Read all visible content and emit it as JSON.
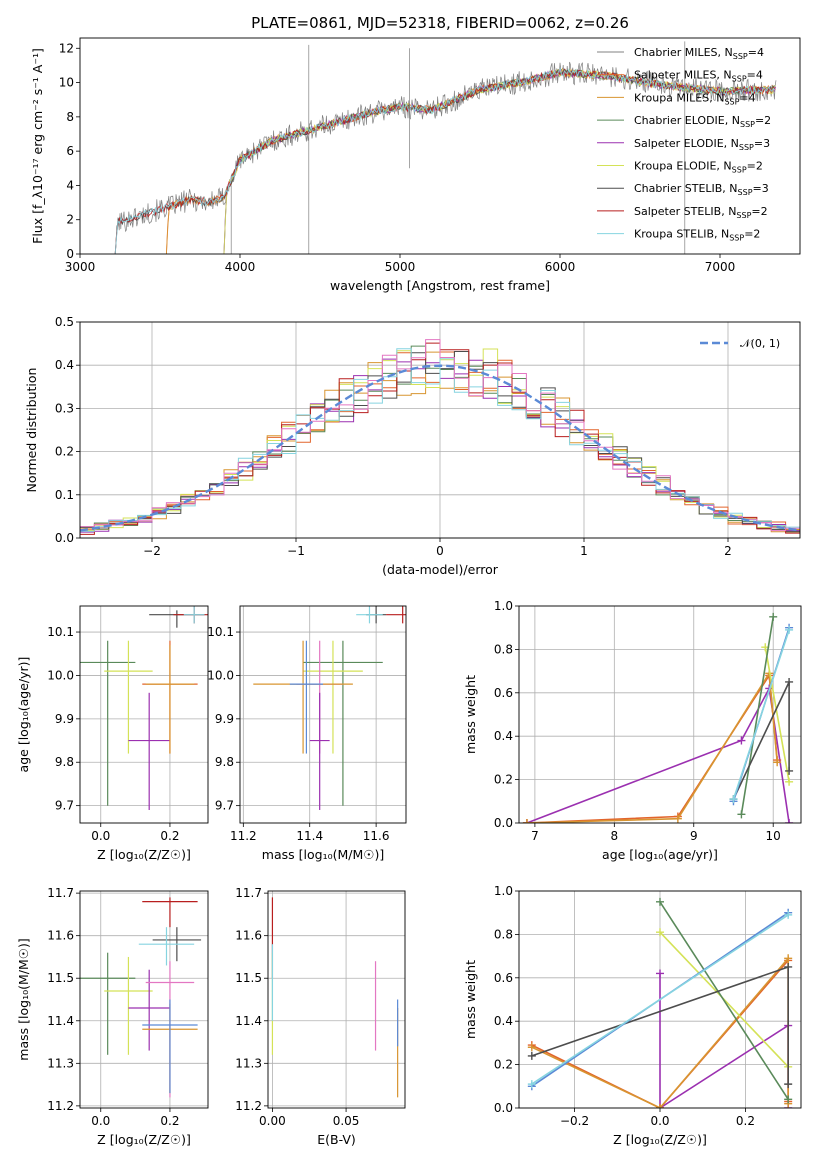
{
  "figure": {
    "title": "PLATE=0861, MJD=52318, FIBERID=0062, z=0.26"
  },
  "chart_data": [
    {
      "id": "spectrum",
      "type": "line",
      "xlabel": "wavelength [Angstrom, rest frame]",
      "ylabel": "Flux [f_λ10⁻¹⁷ erg cm⁻² s⁻¹ A⁻¹]",
      "xlim": [
        3000,
        7500
      ],
      "ylim": [
        0,
        12.6
      ],
      "xticks": [
        3000,
        4000,
        5000,
        6000,
        7000
      ],
      "yticks": [
        0,
        2,
        4,
        6,
        8,
        10,
        12
      ],
      "grid": false,
      "legend_position": "top-right",
      "series": [
        {
          "name": "Chabrier MILES, N_SSP=4",
          "color": "#808080",
          "start": 3220
        },
        {
          "name": "Salpeter MILES, N_SSP=4",
          "color": "#e2652c",
          "start": 3540
        },
        {
          "name": "Kroupa MILES, N_SSP=4",
          "color": "#d89531",
          "start": 3540
        },
        {
          "name": "Chabrier ELODIE, N_SSP=2",
          "color": "#5a8a5a",
          "start": 3900
        },
        {
          "name": "Salpeter ELODIE, N_SSP=3",
          "color": "#9b30b0",
          "start": 3900
        },
        {
          "name": "Kroupa ELODIE, N_SSP=2",
          "color": "#d4e257",
          "start": 3900
        },
        {
          "name": "Chabrier STELIB, N_SSP=3",
          "color": "#4d4d4d",
          "start": 3220
        },
        {
          "name": "Salpeter STELIB, N_SSP=2",
          "color": "#b81f1f",
          "start": 3220
        },
        {
          "name": "Kroupa STELIB, N_SSP=2",
          "color": "#86d4e0",
          "start": 3220
        }
      ],
      "continuum": {
        "x": [
          3220,
          3300,
          3400,
          3500,
          3600,
          3700,
          3800,
          3900,
          4000,
          4200,
          4500,
          4800,
          5000,
          5200,
          5500,
          5800,
          6000,
          6300,
          6600,
          7000,
          7350
        ],
        "y": [
          1.8,
          2.0,
          2.3,
          2.6,
          2.9,
          3.2,
          3.0,
          3.3,
          5.5,
          6.6,
          7.4,
          8.2,
          8.6,
          8.4,
          9.6,
          10.1,
          10.6,
          10.4,
          9.9,
          9.5,
          9.6
        ]
      }
    },
    {
      "id": "residuals",
      "type": "step",
      "xlabel": "(data-model)/error",
      "ylabel": "Normed distribution",
      "xlim": [
        -2.5,
        2.5
      ],
      "ylim": [
        0,
        0.5
      ],
      "xticks": [
        -2,
        -1,
        0,
        1,
        2
      ],
      "yticks": [
        0.0,
        0.1,
        0.2,
        0.3,
        0.4,
        0.5
      ],
      "grid": true,
      "legend": "𝒩(0, 1)",
      "legend_position": "top-right",
      "gaussian_color": "#5b8ad6",
      "bin_width": 0.1,
      "series": [
        {
          "color": "#e2652c",
          "seed": 3
        },
        {
          "color": "#d89531",
          "seed": 5
        },
        {
          "color": "#5a8a5a",
          "seed": 7
        },
        {
          "color": "#9b30b0",
          "seed": 11
        },
        {
          "color": "#d4e257",
          "seed": 13
        },
        {
          "color": "#4d4d4d",
          "seed": 17
        },
        {
          "color": "#b81f1f",
          "seed": 19
        },
        {
          "color": "#86d4e0",
          "seed": 23
        },
        {
          "color": "#e377c2",
          "seed": 29
        }
      ]
    },
    {
      "id": "age-vs-Z",
      "type": "errorbar",
      "xlabel": "Z [log₁₀(Z/Z☉)]",
      "ylabel": "age  [log₁₀(age/yr)]",
      "xlim": [
        -0.06,
        0.31
      ],
      "ylim": [
        9.66,
        10.16
      ],
      "xticks": [
        0.0,
        0.2
      ],
      "yticks": [
        9.7,
        9.8,
        9.9,
        10.0,
        10.1
      ],
      "grid": true,
      "points": [
        {
          "x": 0.02,
          "y": 10.03,
          "xerr": 0.08,
          "yerr": [
            0.33,
            0.05
          ],
          "color": "#5a8a5a"
        },
        {
          "x": 0.08,
          "y": 10.01,
          "xerr": 0.07,
          "yerr": [
            0.19,
            0.07
          ],
          "color": "#d4e257"
        },
        {
          "x": 0.14,
          "y": 9.85,
          "xerr": 0.06,
          "yerr": [
            0.16,
            0.11
          ],
          "color": "#9b30b0"
        },
        {
          "x": 0.2,
          "y": 9.98,
          "xerr": 0.08,
          "yerr": [
            0.16,
            0.1
          ],
          "color": "#e2652c"
        },
        {
          "x": 0.2,
          "y": 9.98,
          "xerr": 0.07,
          "yerr": [
            0.16,
            0.09
          ],
          "color": "#d89531"
        },
        {
          "x": 0.22,
          "y": 10.14,
          "xerr": 0.08,
          "yerr": [
            0.03,
            0.01
          ],
          "color": "#4d4d4d"
        },
        {
          "x": 0.27,
          "y": 10.14,
          "xerr": 0.06,
          "yerr": [
            0.02,
            0.02
          ],
          "color": "#b81f1f"
        },
        {
          "x": 0.27,
          "y": 10.14,
          "xerr": 0.03,
          "yerr": [
            0.02,
            0.02
          ],
          "color": "#86d4e0"
        }
      ]
    },
    {
      "id": "age-vs-mass",
      "type": "errorbar",
      "xlabel": "mass [log₁₀(M/M☉)]",
      "ylabel": "",
      "xlim": [
        11.19,
        11.69
      ],
      "ylim": [
        9.66,
        10.16
      ],
      "xticks": [
        11.2,
        11.4,
        11.6
      ],
      "yticks": [
        9.7,
        9.8,
        9.9,
        10.0,
        10.1
      ],
      "grid": true,
      "points": [
        {
          "x": 11.5,
          "y": 10.03,
          "xerr": 0.12,
          "yerr": [
            0.33,
            0.05
          ],
          "color": "#5a8a5a"
        },
        {
          "x": 11.47,
          "y": 10.01,
          "xerr": 0.09,
          "yerr": [
            0.19,
            0.07
          ],
          "color": "#d4e257"
        },
        {
          "x": 11.43,
          "y": 9.98,
          "xerr": 0.07,
          "yerr": [
            0.16,
            0.1
          ],
          "color": "#e377c2"
        },
        {
          "x": 11.38,
          "y": 9.98,
          "xerr": 0.15,
          "yerr": [
            0.16,
            0.1
          ],
          "color": "#d89531"
        },
        {
          "x": 11.39,
          "y": 9.98,
          "xerr": 0.05,
          "yerr": [
            0.16,
            0.1
          ],
          "color": "#5b8ad6"
        },
        {
          "x": 11.43,
          "y": 9.85,
          "xerr": 0.03,
          "yerr": [
            0.16,
            0.11
          ],
          "color": "#9b30b0"
        },
        {
          "x": 11.6,
          "y": 10.14,
          "xerr": 0.03,
          "yerr": [
            0.02,
            0.02
          ],
          "color": "#4d4d4d"
        },
        {
          "x": 11.68,
          "y": 10.14,
          "xerr": 0.05,
          "yerr": [
            0.02,
            0.02
          ],
          "color": "#b81f1f"
        },
        {
          "x": 11.58,
          "y": 10.14,
          "xerr": 0.04,
          "yerr": [
            0.02,
            0.02
          ],
          "color": "#86d4e0"
        }
      ]
    },
    {
      "id": "weight-vs-age",
      "type": "line",
      "xlabel": "age  [log₁₀(age/yr)]",
      "ylabel": "mass weight",
      "xlim": [
        6.8,
        10.35
      ],
      "ylim": [
        0,
        1
      ],
      "xticks": [
        7,
        8,
        9,
        10
      ],
      "yticks": [
        0.0,
        0.2,
        0.4,
        0.6,
        0.8,
        1.0
      ],
      "grid": true,
      "series": [
        {
          "color": "#9b30b0",
          "x": [
            6.9,
            9.6,
            9.95,
            10.2
          ],
          "y": [
            0.0,
            0.38,
            0.62,
            0.0
          ]
        },
        {
          "color": "#e2652c",
          "x": [
            6.9,
            8.8,
            9.95,
            10.05
          ],
          "y": [
            0.0,
            0.03,
            0.68,
            0.29
          ]
        },
        {
          "color": "#d89531",
          "x": [
            6.9,
            8.8,
            9.95,
            10.05
          ],
          "y": [
            0.0,
            0.02,
            0.69,
            0.28
          ]
        },
        {
          "color": "#d4e257",
          "x": [
            9.9,
            10.2
          ],
          "y": [
            0.81,
            0.19
          ]
        },
        {
          "color": "#5a8a5a",
          "x": [
            9.6,
            10.0
          ],
          "y": [
            0.04,
            0.95
          ]
        },
        {
          "color": "#4d4d4d",
          "x": [
            9.5,
            10.2,
            10.2
          ],
          "y": [
            0.11,
            0.65,
            0.24
          ]
        },
        {
          "color": "#5b8ad6",
          "x": [
            9.5,
            10.2
          ],
          "y": [
            0.1,
            0.9
          ]
        },
        {
          "color": "#86d4e0",
          "x": [
            9.5,
            10.2
          ],
          "y": [
            0.11,
            0.89
          ]
        }
      ]
    },
    {
      "id": "mass-vs-Z",
      "type": "errorbar",
      "xlabel": "Z [log₁₀(Z/Z☉)]",
      "ylabel": "mass [log₁₀(M/M☉)]",
      "xlim": [
        -0.06,
        0.31
      ],
      "ylim": [
        11.195,
        11.705
      ],
      "xticks": [
        0.0,
        0.2
      ],
      "yticks": [
        11.2,
        11.3,
        11.4,
        11.5,
        11.6,
        11.7
      ],
      "grid": true,
      "points": [
        {
          "x": 0.02,
          "y": 11.5,
          "xerr": 0.08,
          "yerr": [
            0.18,
            0.06
          ],
          "color": "#5a8a5a"
        },
        {
          "x": 0.08,
          "y": 11.47,
          "xerr": 0.07,
          "yerr": [
            0.15,
            0.08
          ],
          "color": "#d4e257"
        },
        {
          "x": 0.14,
          "y": 11.43,
          "xerr": 0.06,
          "yerr": [
            0.1,
            0.09
          ],
          "color": "#9b30b0"
        },
        {
          "x": 0.2,
          "y": 11.49,
          "xerr": 0.07,
          "yerr": [
            0.27,
            0.05
          ],
          "color": "#e377c2"
        },
        {
          "x": 0.2,
          "y": 11.38,
          "xerr": 0.08,
          "yerr": [
            0.15,
            0.06
          ],
          "color": "#d89531"
        },
        {
          "x": 0.2,
          "y": 11.39,
          "xerr": 0.08,
          "yerr": [
            0.16,
            0.06
          ],
          "color": "#5b8ad6"
        },
        {
          "x": 0.22,
          "y": 11.59,
          "xerr": 0.07,
          "yerr": [
            0.05,
            0.03
          ],
          "color": "#4d4d4d"
        },
        {
          "x": 0.19,
          "y": 11.58,
          "xerr": 0.08,
          "yerr": [
            0.05,
            0.04
          ],
          "color": "#86d4e0"
        },
        {
          "x": 0.2,
          "y": 11.68,
          "xerr": 0.08,
          "yerr": [
            0.06,
            0.01
          ],
          "color": "#b81f1f"
        }
      ]
    },
    {
      "id": "mass-vs-ebv",
      "type": "errorbar",
      "xlabel": "E(B-V)",
      "ylabel": "",
      "xlim": [
        -0.003,
        0.09
      ],
      "ylim": [
        11.195,
        11.705
      ],
      "xticks": [
        0.0,
        0.05
      ],
      "yticks": [
        11.2,
        11.3,
        11.4,
        11.5,
        11.6,
        11.7
      ],
      "grid": true,
      "points": [
        {
          "x": 0.0,
          "y": 11.6,
          "xerr": 0.0,
          "yerr": [
            0.1,
            0.09
          ],
          "color": "#b81f1f"
        },
        {
          "x": 0.0,
          "y": 11.5,
          "xerr": 0.0,
          "yerr": [
            0.18,
            0.06
          ],
          "color": "#d4e257"
        },
        {
          "x": 0.0,
          "y": 11.52,
          "xerr": 0.0,
          "yerr": [
            0.12,
            0.06
          ],
          "color": "#86d4e0"
        },
        {
          "x": 0.07,
          "y": 11.43,
          "xerr": 0.0,
          "yerr": [
            0.1,
            0.11
          ],
          "color": "#e377c2"
        },
        {
          "x": 0.085,
          "y": 11.38,
          "xerr": 0.0,
          "yerr": [
            0.16,
            0.05
          ],
          "color": "#d89531"
        },
        {
          "x": 0.085,
          "y": 11.4,
          "xerr": 0.0,
          "yerr": [
            0.06,
            0.05
          ],
          "color": "#5b8ad6"
        }
      ]
    },
    {
      "id": "weight-vs-Z",
      "type": "line",
      "xlabel": "Z [log₁₀(Z/Z☉)]",
      "ylabel": "mass weight",
      "xlim": [
        -0.33,
        0.33
      ],
      "ylim": [
        0,
        1
      ],
      "xticks": [
        -0.2,
        0.0,
        0.2
      ],
      "yticks": [
        0.0,
        0.2,
        0.4,
        0.6,
        0.8,
        1.0
      ],
      "grid": true,
      "series": [
        {
          "color": "#9b30b0",
          "x": [
            0.0,
            0.0,
            0.3,
            0.3
          ],
          "y": [
            0.62,
            0.0,
            0.38,
            0.0
          ]
        },
        {
          "color": "#e2652c",
          "x": [
            -0.3,
            0.0,
            0.3,
            0.3
          ],
          "y": [
            0.29,
            0.0,
            0.68,
            0.03
          ]
        },
        {
          "color": "#d89531",
          "x": [
            -0.3,
            0.0,
            0.3,
            0.3
          ],
          "y": [
            0.28,
            0.0,
            0.69,
            0.02
          ]
        },
        {
          "color": "#d4e257",
          "x": [
            0.0,
            0.3
          ],
          "y": [
            0.81,
            0.19
          ]
        },
        {
          "color": "#5a8a5a",
          "x": [
            0.0,
            0.3
          ],
          "y": [
            0.95,
            0.04
          ]
        },
        {
          "color": "#4d4d4d",
          "x": [
            -0.3,
            0.3,
            0.3
          ],
          "y": [
            0.24,
            0.65,
            0.11
          ]
        },
        {
          "color": "#5b8ad6",
          "x": [
            -0.3,
            0.3
          ],
          "y": [
            0.1,
            0.9
          ]
        },
        {
          "color": "#86d4e0",
          "x": [
            -0.3,
            0.3
          ],
          "y": [
            0.11,
            0.89
          ]
        }
      ]
    }
  ]
}
